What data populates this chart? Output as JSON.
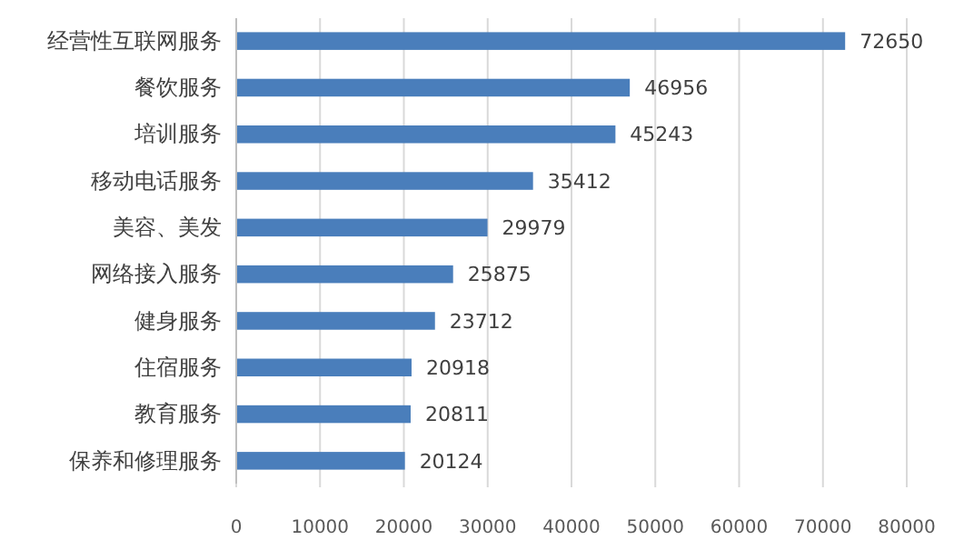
{
  "chart_data": {
    "type": "bar",
    "orientation": "horizontal",
    "categories": [
      "经营性互联网服务",
      "餐饮服务",
      "培训服务",
      "移动电话服务",
      "美容、美发",
      "网络接入服务",
      "健身服务",
      "住宿服务",
      "教育服务",
      "保养和修理服务"
    ],
    "values": [
      72650,
      46956,
      45243,
      35412,
      29979,
      25875,
      23712,
      20918,
      20811,
      20124
    ],
    "color": "#4a7ebb",
    "xlim": [
      0,
      80000
    ],
    "xticks": [
      0,
      10000,
      20000,
      30000,
      40000,
      50000,
      60000,
      70000,
      80000
    ],
    "grid": "x",
    "data_labels": true
  }
}
